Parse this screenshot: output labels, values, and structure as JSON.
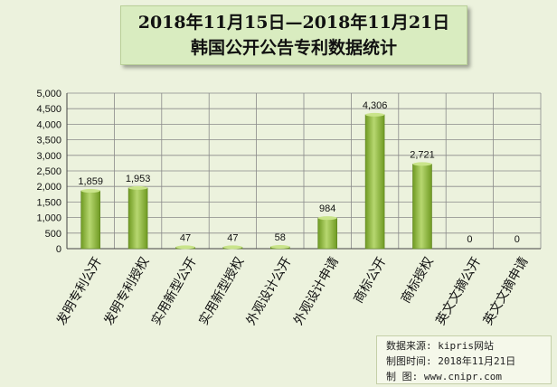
{
  "chart_data": {
    "type": "bar",
    "title_line1": "2018年11月15日—2018年11月21日",
    "title_line2": "韩国公开公告专利数据统计",
    "categories": [
      "发明专利公开",
      "发明专利授权",
      "实用新型公开",
      "实用新型授权",
      "外观设计公开",
      "外观设计申请",
      "商标公开",
      "商标授权",
      "英文文摘公开",
      "英文文摘申请"
    ],
    "values": [
      1859,
      1953,
      47,
      47,
      58,
      984,
      4306,
      2721,
      0,
      0
    ],
    "value_labels": [
      "1,859",
      "1,953",
      "47",
      "47",
      "58",
      "984",
      "4,306",
      "2,721",
      "0",
      "0"
    ],
    "ylim": [
      0,
      5000
    ],
    "ytick_labels": [
      "0",
      "500",
      "1,000",
      "1,500",
      "2,000",
      "2,500",
      "3,000",
      "3,500",
      "4,000",
      "4,500",
      "5,000"
    ],
    "grid": true,
    "bar_color": "#8db53c"
  },
  "source": {
    "line1": "数据来源: kipris网站",
    "line2": "制图时间: 2018年11月21日",
    "line3": "制    图: www.cnipr.com"
  }
}
